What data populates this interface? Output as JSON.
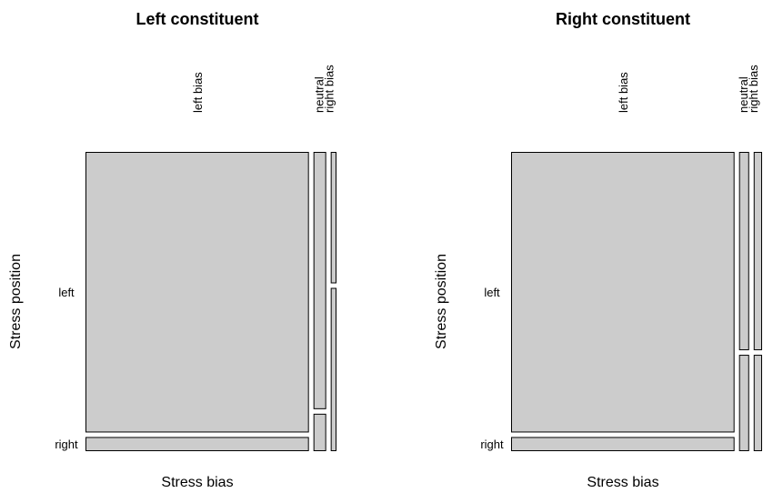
{
  "chart_data": [
    {
      "type": "mosaic",
      "title": "Left constituent",
      "xlabel": "Stress bias",
      "ylabel": "Stress position",
      "x_categories": [
        "left bias",
        "neutral",
        "right bias"
      ],
      "y_categories": [
        "left",
        "right"
      ],
      "column_widths": [
        0.931,
        0.053,
        0.024
      ],
      "conditional_proportions": [
        {
          "column": "left bias",
          "left": 0.952,
          "right": 0.048
        },
        {
          "column": "neutral",
          "left": 0.873,
          "right": 0.127
        },
        {
          "column": "right bias",
          "left": 0.446,
          "right": 0.554
        }
      ],
      "fill_color": "#cccccc",
      "edge_color": "#000000"
    },
    {
      "type": "mosaic",
      "title": "Right constituent",
      "xlabel": "Stress bias",
      "ylabel": "Stress position",
      "x_categories": [
        "left bias",
        "neutral",
        "right bias"
      ],
      "y_categories": [
        "left",
        "right"
      ],
      "column_widths": [
        0.931,
        0.042,
        0.035
      ],
      "conditional_proportions": [
        {
          "column": "left bias",
          "left": 0.952,
          "right": 0.048
        },
        {
          "column": "neutral",
          "left": 0.673,
          "right": 0.327
        },
        {
          "column": "right bias",
          "left": 0.673,
          "right": 0.327
        }
      ],
      "fill_color": "#cccccc",
      "edge_color": "#000000"
    }
  ]
}
